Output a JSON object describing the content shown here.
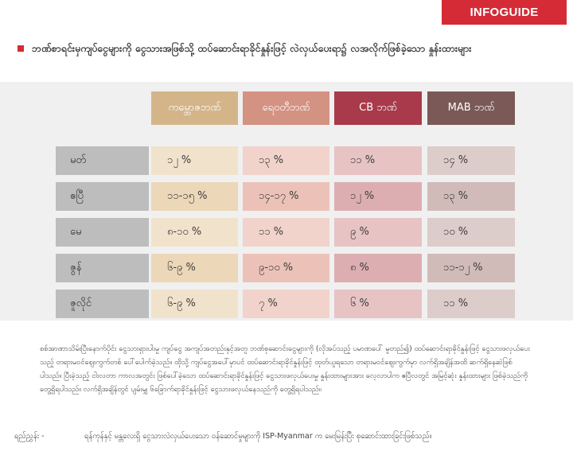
{
  "badge": "INFOGUIDE",
  "title": "ဘဏ်စာရင်းမှကျပ်ငွေများကို ငွေသားအဖြစ်သို့ ထပ်ဆောင်းရာခိုင်နှုန်းဖြင့် လဲလှယ်ပေးရာ၌ လအလိုက်ဖြစ်ခဲ့သော နှုန်းထားများ",
  "colors": {
    "badge": "#d42b36",
    "kbz": "#d4b58a",
    "aya": "#d49283",
    "cb": "#a93a4b",
    "mab": "#7a5957",
    "row_label": "#bdbdbd",
    "panel": "#f0f0f0"
  },
  "table": {
    "columns": [
      "ကမ္ဘောဇဘဏ်",
      "ရေဝတီဘဏ်",
      "CB ဘဏ်",
      "MAB ဘဏ်"
    ],
    "rows": [
      {
        "month": "မတ်",
        "values": [
          "၁၂ %",
          "၁၃ %",
          "၁၁ %",
          "၁၄ %"
        ]
      },
      {
        "month": "ဧပြီ",
        "values": [
          "၁၁-၁၅ %",
          "၁၄-၁၇ %",
          "၁၂ %",
          "၁၃ %"
        ]
      },
      {
        "month": "မေ",
        "values": [
          "၈-၁၀ %",
          "၁၁ %",
          "၉ %",
          "၁၀ %"
        ]
      },
      {
        "month": "ဇွန်",
        "values": [
          "၆-၉ %",
          "၉-၁၀ %",
          "၈ %",
          "၁၁-၁၂ %"
        ]
      },
      {
        "month": "ဇူလိုင်",
        "values": [
          "၆-၉ %",
          "၇ %",
          "၆ %",
          "၁၁ %"
        ]
      }
    ]
  },
  "note": "စစ်အာဏာသိမ်းပြီးနောက်ပိုင်း ငွေသားရှားပါးမှု ကျပ်ငွေ အကျပ်အတည်းနှင့်အတူ ဘဏ်စုဆောင်းငွေများကို (လိုအပ်သည့် ပမာဏပေါ် မူတည်၍) ထပ်ဆောင်းရာခိုင်နှုန်းဖြင့် ငွေသားဖလှယ်ပေးသည့် တရားမဝင်ဈေးကွက်တစ် ပေါ်ပေါက်ခဲ့သည်။ ထိုသို့ ကျပ်ငွေအပေါ်မှာပင် ထပ်ဆောင်းရာခိုင်နှုန်းဖြင့် ထုတ်ယူရသော တရားမဝင်ဈေးကွက်မှာ လက်ရှိအချိန်အထိ ဆက်ရှိနေဆဲဖြစ်ပါသည်။ ပြီးခဲ့သည့် ငါးလတာ ကာလအတွင်း ဖြစ်ပေါ်ခဲ့သော ထပ်ဆောင်းရာခိုင်နှုန်းဖြင့် ငွေသားဖလှယ်ပေးမှု နှုန်းထားများအား လေ့လာပါက ဧပြီလတွင် အမြင့်ဆုံး နှုန်းထားများ ဖြစ်ခဲ့သည်ကို တွေ့ရှိရပါသည်။ လက်ရှိအချိန်တွင် ပျမ်းမျှ ၆ခြောက်ရာခိုင်နှုန်းဖြင့် ငွေသားဖလှယ်နေသည်ကို တွေ့ရှိရပါသည်။",
  "source_label": "ရည်ညွှန်း -",
  "source_text": "ရန်ကုန်နှင့် မန္တလေးရှိ ငွေသားလဲလှယ်ပေးသော ဝန်ဆောင်မှုများကို ISP-Myanmar က မေးမြန်းပြီး စုဆောင်းထားခြင်းဖြစ်သည်။"
}
